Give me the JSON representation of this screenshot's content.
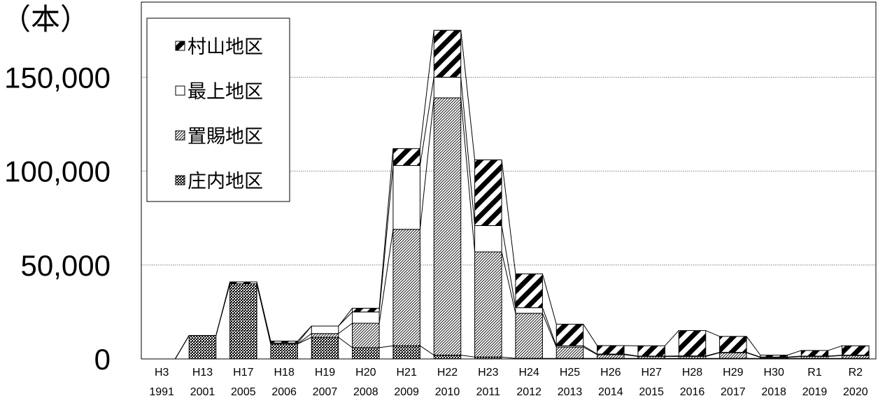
{
  "chart_data": {
    "type": "bar",
    "stacked": true,
    "unit_label": "（本）",
    "title": "",
    "xlabel": "",
    "ylabel": "",
    "categories": [
      [
        "H3",
        "1991"
      ],
      [
        "H13",
        "2001"
      ],
      [
        "H17",
        "2005"
      ],
      [
        "H18",
        "2006"
      ],
      [
        "H19",
        "2007"
      ],
      [
        "H20",
        "2008"
      ],
      [
        "H21",
        "2009"
      ],
      [
        "H22",
        "2010"
      ],
      [
        "H23",
        "2011"
      ],
      [
        "H24",
        "2012"
      ],
      [
        "H25",
        "2013"
      ],
      [
        "H26",
        "2014"
      ],
      [
        "H27",
        "2015"
      ],
      [
        "H28",
        "2016"
      ],
      [
        "H29",
        "2017"
      ],
      [
        "H30",
        "2018"
      ],
      [
        "R1",
        "2019"
      ],
      [
        "R2",
        "2020"
      ]
    ],
    "series": [
      {
        "name": "庄内地区",
        "pattern": "crosshatch",
        "values": [
          0,
          12500,
          40000,
          8000,
          11500,
          6000,
          7000,
          2000,
          1000,
          300,
          300,
          300,
          300,
          300,
          300,
          300,
          300,
          300
        ]
      },
      {
        "name": "置賜地区",
        "pattern": "diagonal",
        "values": [
          0,
          0,
          0,
          0,
          2000,
          13000,
          62000,
          137000,
          56000,
          24000,
          6000,
          2000,
          1000,
          1000,
          3000,
          500,
          1000,
          1500
        ]
      },
      {
        "name": "最上地区",
        "pattern": "blank",
        "values": [
          0,
          0,
          0,
          500,
          4000,
          6000,
          34000,
          11000,
          14000,
          3000,
          700,
          300,
          200,
          300,
          200,
          200,
          200,
          200
        ]
      },
      {
        "name": "村山地区",
        "pattern": "bold-diagonal",
        "values": [
          0,
          0,
          1000,
          1000,
          0,
          2000,
          9000,
          25000,
          35000,
          18000,
          11500,
          4500,
          5500,
          13500,
          8500,
          1000,
          3000,
          5000
        ]
      }
    ],
    "legend_order": [
      "村山地区",
      "最上地区",
      "置賜地区",
      "庄内地区"
    ],
    "legend_position": "top-left",
    "ylim": [
      0,
      190000
    ],
    "yticks": [
      0,
      50000,
      100000,
      150000
    ],
    "ytick_labels": [
      "0",
      "50,000",
      "100,000",
      "150,000"
    ],
    "grid": "horizontal-dotted",
    "colors": {
      "bar_fill": "#ffffff",
      "ink": "#000000",
      "grid": "#808080"
    }
  }
}
